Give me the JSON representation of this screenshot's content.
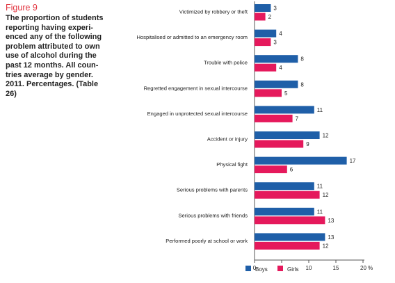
{
  "figure": {
    "label": "Figure 9",
    "caption": "The proportion of students\nreporting having experi-\nenced any of the following\nproblem attributed to own\nuse of alcohol during the\npast 12 months. All coun-\ntries average by gender.\n2011. Percentages. (Table\n26)"
  },
  "colors": {
    "boys": "#1f5fa8",
    "girls": "#e5195c",
    "axis": "#555555"
  },
  "chart_data": {
    "type": "bar",
    "orientation": "horizontal",
    "categories": [
      "Victimized by robbery or theft",
      "Hospitalised or admitted to an emergency room",
      "Trouble with police",
      "Regretted engagement in sexual intercourse",
      "Engaged in unprotected sexual intercourse",
      "Accident or injury",
      "Physical fight",
      "Serious problems with parents",
      "Serious problems with friends",
      "Performed poorly at school or work"
    ],
    "series": [
      {
        "name": "Boys",
        "values": [
          3,
          4,
          8,
          8,
          11,
          12,
          17,
          11,
          11,
          13
        ]
      },
      {
        "name": "Girls",
        "values": [
          2,
          3,
          4,
          5,
          7,
          9,
          6,
          12,
          13,
          12
        ]
      }
    ],
    "xlim": [
      0,
      20
    ],
    "xticks": [
      "0",
      "5",
      "10",
      "15",
      "20 %"
    ],
    "legend_position": "bottom"
  }
}
